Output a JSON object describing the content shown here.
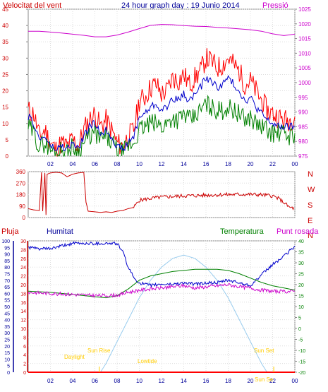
{
  "header": {
    "wind_label": "Velocitat del vent",
    "title": "24 hour graph day : 19 Junio 2014",
    "pressure_label": "Pressió"
  },
  "lower_labels": {
    "rain": "Pluja",
    "humidity": "Humitat",
    "temperature": "Temperatura",
    "dewpoint": "Punt rosada"
  },
  "colors": {
    "wind_gust": "#ff0000",
    "wind_avg": "#0000cc",
    "wind_green": "#008000",
    "pressure": "#cc00cc",
    "direction": "#cc0000",
    "humidity": "#0000cc",
    "temperature": "#008000",
    "dewpoint": "#cc00cc",
    "solar": "#99ccee",
    "rain": "#ff0000",
    "sun_labels": "#ffcc00",
    "axis_left_red": "#cc0000",
    "axis_right_magenta": "#cc00cc",
    "axis_blue": "#000099",
    "axis_green": "#008000"
  },
  "chart_data": [
    {
      "id": "wind",
      "type": "line",
      "left_ticks": [
        "0",
        "5",
        "10",
        "15",
        "20",
        "25",
        "30",
        "35",
        "40",
        "45"
      ],
      "right_ticks": [
        "975",
        "980",
        "985",
        "990",
        "995",
        "1000",
        "1005",
        "1010",
        "1015",
        "1020",
        "1025"
      ],
      "x_ticks": [
        "02",
        "04",
        "06",
        "08",
        "10",
        "12",
        "14",
        "16",
        "18",
        "20",
        "22",
        "00"
      ],
      "ylim_left": [
        0,
        45
      ],
      "ylim_right": [
        975,
        1025
      ],
      "series": [
        {
          "key": "gust",
          "x": [
            0,
            0.5,
            1,
            1.5,
            2,
            2.5,
            3,
            3.5,
            4,
            4.5,
            5,
            5.5,
            6,
            6.5,
            7,
            7.5,
            8,
            8.5,
            9,
            9.5,
            10,
            10.5,
            11,
            11.5,
            12,
            12.5,
            13,
            13.5,
            14,
            14.5,
            15,
            15.5,
            16,
            16.5,
            17,
            17.5,
            18,
            18.5,
            19,
            19.5,
            20,
            20.5,
            21,
            21.5,
            22,
            22.5,
            23,
            23.5,
            24
          ],
          "values": [
            14,
            13,
            6,
            8,
            4,
            2,
            4,
            3,
            5,
            3,
            8,
            11,
            13,
            9,
            11,
            8,
            4,
            3,
            6,
            8,
            17,
            18,
            21,
            22,
            19,
            20,
            24,
            23,
            25,
            22,
            24,
            26,
            30,
            29,
            27,
            28,
            30,
            28,
            26,
            22,
            23,
            20,
            17,
            14,
            13,
            12,
            11,
            11,
            12
          ]
        },
        {
          "key": "avg",
          "x": [
            0,
            0.5,
            1,
            1.5,
            2,
            2.5,
            3,
            3.5,
            4,
            4.5,
            5,
            5.5,
            6,
            6.5,
            7,
            7.5,
            8,
            8.5,
            9,
            9.5,
            10,
            10.5,
            11,
            11.5,
            12,
            12.5,
            13,
            13.5,
            14,
            14.5,
            15,
            15.5,
            16,
            16.5,
            17,
            17.5,
            18,
            18.5,
            19,
            19.5,
            20,
            20.5,
            21,
            21.5,
            22,
            22.5,
            23,
            23.5,
            24
          ],
          "values": [
            12,
            10,
            5,
            6,
            3,
            2,
            3,
            2,
            4,
            2,
            6,
            9,
            10,
            7,
            8,
            6,
            3,
            2,
            4,
            6,
            12,
            13,
            15,
            16,
            14,
            15,
            18,
            17,
            19,
            17,
            19,
            21,
            24,
            23,
            21,
            22,
            24,
            22,
            20,
            17,
            18,
            15,
            13,
            11,
            10,
            9,
            9,
            9,
            9
          ]
        },
        {
          "key": "green",
          "x": [
            0,
            0.5,
            1,
            1.5,
            2,
            2.5,
            3,
            3.5,
            4,
            4.5,
            5,
            5.5,
            6,
            6.5,
            7,
            7.5,
            8,
            8.5,
            9,
            9.5,
            10,
            10.5,
            11,
            11.5,
            12,
            12.5,
            13,
            13.5,
            14,
            14.5,
            15,
            15.5,
            16,
            16.5,
            17,
            17.5,
            18,
            18.5,
            19,
            19.5,
            20,
            20.5,
            21,
            21.5,
            22,
            22.5,
            23,
            23.5,
            24
          ],
          "values": [
            9,
            7,
            3,
            4,
            2,
            1,
            2,
            1,
            3,
            1,
            4,
            6,
            7,
            5,
            6,
            4,
            2,
            1,
            3,
            4,
            8,
            9,
            10,
            10,
            9,
            10,
            12,
            11,
            13,
            11,
            12,
            14,
            16,
            15,
            14,
            14,
            15,
            14,
            13,
            11,
            12,
            10,
            9,
            8,
            7,
            7,
            7,
            6,
            7
          ]
        },
        {
          "key": "pressure",
          "x": [
            0,
            1,
            2,
            3,
            4,
            5,
            6,
            7,
            8,
            9,
            10,
            11,
            12,
            13,
            14,
            15,
            16,
            17,
            18,
            19,
            20,
            21,
            22,
            23,
            24
          ],
          "values": [
            1017.5,
            1017.5,
            1017.2,
            1016.9,
            1016.5,
            1016.1,
            1015.6,
            1015.6,
            1016.2,
            1017.2,
            1018.4,
            1019.5,
            1019.8,
            1019.7,
            1019.4,
            1019.2,
            1019.1,
            1018.8,
            1018.6,
            1018.3,
            1018.0,
            1017.5,
            1016.6,
            1016.0,
            1016.5
          ]
        }
      ]
    },
    {
      "id": "direction",
      "type": "line",
      "left_ticks": [
        "0",
        "90",
        "180",
        "270",
        "360"
      ],
      "right_labels": [
        "N",
        "W",
        "S",
        "E",
        "N"
      ],
      "ylim": [
        0,
        360
      ],
      "series": [
        {
          "key": "direction",
          "x": [
            0,
            0.5,
            1,
            1.2,
            1.3,
            1.5,
            1.6,
            1.7,
            2,
            2.5,
            3,
            3.5,
            4,
            4.5,
            5,
            5.2,
            5.4,
            6,
            6.5,
            7,
            7.5,
            8,
            8.5,
            9,
            9.5,
            10,
            11,
            12,
            13,
            14,
            15,
            16,
            17,
            18,
            19,
            20,
            21,
            22,
            22.5,
            23,
            23.5,
            24
          ],
          "values": [
            70,
            60,
            55,
            355,
            50,
            350,
            20,
            340,
            350,
            355,
            350,
            320,
            340,
            350,
            355,
            120,
            50,
            45,
            40,
            45,
            40,
            50,
            55,
            70,
            80,
            135,
            150,
            160,
            165,
            170,
            172,
            175,
            178,
            180,
            182,
            182,
            178,
            170,
            150,
            120,
            80,
            70
          ]
        }
      ]
    },
    {
      "id": "humidity",
      "type": "line",
      "left_ticks": [
        "0",
        "5",
        "10",
        "15",
        "20",
        "25",
        "30",
        "35",
        "40",
        "45",
        "50",
        "55",
        "60",
        "65",
        "70",
        "75",
        "80",
        "85",
        "90",
        "95",
        "100"
      ],
      "rain_ticks": [
        "0",
        "2",
        "4",
        "6",
        "8",
        "10",
        "12",
        "14",
        "16",
        "18",
        "20",
        "22",
        "24",
        "26",
        "28",
        "30"
      ],
      "right_ticks": [
        "-20",
        "-15",
        "-10",
        "-5",
        "0",
        "5",
        "10",
        "15",
        "20",
        "25",
        "30",
        "35",
        "40"
      ],
      "x_ticks": [
        "02",
        "04",
        "06",
        "08",
        "10",
        "12",
        "14",
        "16",
        "18",
        "20",
        "22",
        "00"
      ],
      "ylim_humidity": [
        0,
        100
      ],
      "ylim_temperature": [
        -20,
        40
      ],
      "ylim_rain": [
        0,
        30
      ],
      "annotations": [
        "Sun Rise",
        "Daylight",
        "Lowtide",
        "Sun Set",
        "Sun Se"
      ],
      "series": [
        {
          "key": "humidity",
          "x": [
            0,
            1,
            2,
            3,
            4,
            5,
            6,
            7,
            8,
            8.5,
            9,
            9.5,
            10,
            11,
            12,
            13,
            14,
            15,
            16,
            17,
            18,
            19,
            20,
            21,
            22,
            23,
            24
          ],
          "values": [
            95,
            94,
            94,
            96,
            98,
            98,
            98,
            98,
            98,
            92,
            80,
            72,
            68,
            66,
            67,
            67,
            68,
            67,
            68,
            68,
            70,
            68,
            66,
            74,
            82,
            88,
            96
          ]
        },
        {
          "key": "temperature",
          "x": [
            0,
            2,
            4,
            6,
            7,
            8,
            9,
            10,
            11,
            12,
            13,
            14,
            15,
            16,
            17,
            18,
            19,
            20,
            21,
            22,
            23,
            24
          ],
          "values": [
            17,
            16.5,
            15.5,
            14.5,
            14,
            15,
            18,
            22,
            24,
            25,
            26,
            26.5,
            27,
            27,
            27,
            26.5,
            25,
            23,
            21,
            19.5,
            18.5,
            17.5
          ]
        },
        {
          "key": "dewpoint",
          "x": [
            0,
            2,
            4,
            6,
            7,
            8,
            9,
            10,
            11,
            12,
            13,
            14,
            15,
            16,
            17,
            18,
            19,
            20,
            21,
            22,
            23,
            24
          ],
          "values": [
            16.5,
            16,
            15.5,
            15,
            15,
            15.2,
            16.5,
            17.5,
            18,
            18.5,
            19,
            19.5,
            18.5,
            19,
            19.5,
            20,
            19,
            18.5,
            17.5,
            17,
            16.8,
            17
          ]
        },
        {
          "key": "solar",
          "x": [
            6.5,
            7,
            8,
            9,
            10,
            11,
            12,
            13,
            14,
            15,
            16,
            17,
            18,
            19,
            20,
            21,
            21.5
          ],
          "values": [
            -20,
            -16,
            -6,
            4,
            14,
            22,
            28,
            32,
            33.5,
            32,
            28,
            22,
            14,
            4,
            -6,
            -16,
            -20
          ]
        },
        {
          "key": "rain",
          "x": [
            0,
            24
          ],
          "values": [
            0,
            0
          ]
        }
      ]
    }
  ]
}
